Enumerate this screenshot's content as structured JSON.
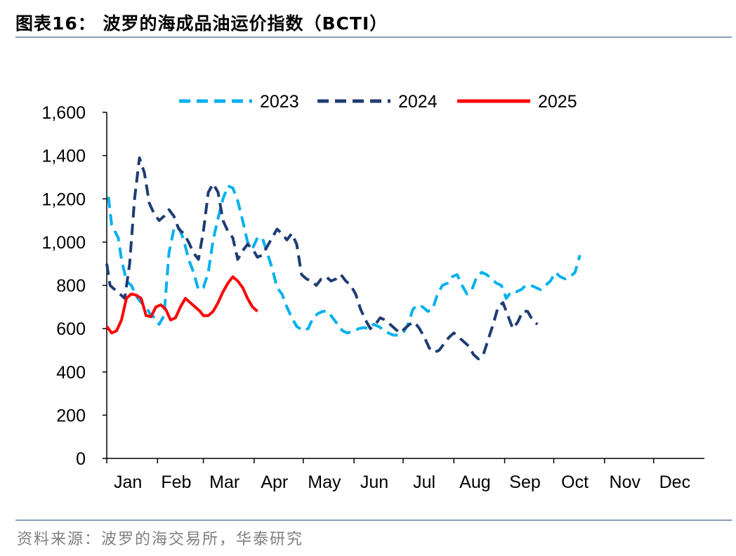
{
  "header": {
    "title": "图表16：  波罗的海成品油运价指数（BCTI）"
  },
  "footer": {
    "source": "资料来源：波罗的海交易所，华泰研究"
  },
  "chart_data": {
    "type": "line",
    "title": "",
    "xlabel": "",
    "ylabel": "",
    "ylim": [
      0,
      1600
    ],
    "yticks": [
      "0",
      "200",
      "400",
      "600",
      "800",
      "1,000",
      "1,200",
      "1,400",
      "1,600"
    ],
    "months": [
      "Jan",
      "Feb",
      "Mar",
      "Apr",
      "May",
      "Jun",
      "Jul",
      "Aug",
      "Sep",
      "Oct",
      "Nov",
      "Dec"
    ],
    "legend_position": "top",
    "grid": false,
    "series": [
      {
        "name": "2023",
        "color": "#00b0f0",
        "style": "dashed",
        "points": [
          [
            "01-02",
            1210
          ],
          [
            "01-04",
            1080
          ],
          [
            "01-06",
            1050
          ],
          [
            "01-08",
            1020
          ],
          [
            "01-10",
            920
          ],
          [
            "01-13",
            820
          ],
          [
            "01-16",
            800
          ],
          [
            "01-19",
            750
          ],
          [
            "01-22",
            720
          ],
          [
            "01-25",
            700
          ],
          [
            "01-28",
            660
          ],
          [
            "01-31",
            650
          ],
          [
            "02-02",
            620
          ],
          [
            "02-05",
            660
          ],
          [
            "02-08",
            950
          ],
          [
            "02-11",
            1060
          ],
          [
            "02-14",
            1070
          ],
          [
            "02-17",
            1010
          ],
          [
            "02-20",
            920
          ],
          [
            "02-23",
            860
          ],
          [
            "02-26",
            780
          ],
          [
            "03-01",
            790
          ],
          [
            "03-04",
            860
          ],
          [
            "03-07",
            1010
          ],
          [
            "03-10",
            1110
          ],
          [
            "03-13",
            1200
          ],
          [
            "03-16",
            1260
          ],
          [
            "03-19",
            1250
          ],
          [
            "03-22",
            1190
          ],
          [
            "03-25",
            1100
          ],
          [
            "03-28",
            1000
          ],
          [
            "03-31",
            970
          ],
          [
            "04-03",
            1020
          ],
          [
            "04-06",
            1020
          ],
          [
            "04-09",
            950
          ],
          [
            "04-12",
            880
          ],
          [
            "04-15",
            790
          ],
          [
            "04-18",
            760
          ],
          [
            "04-21",
            700
          ],
          [
            "04-24",
            650
          ],
          [
            "04-27",
            610
          ],
          [
            "05-01",
            590
          ],
          [
            "05-04",
            600
          ],
          [
            "05-07",
            650
          ],
          [
            "05-10",
            670
          ],
          [
            "05-13",
            680
          ],
          [
            "05-16",
            680
          ],
          [
            "05-19",
            650
          ],
          [
            "05-22",
            620
          ],
          [
            "05-25",
            590
          ],
          [
            "05-28",
            580
          ],
          [
            "06-01",
            590
          ],
          [
            "06-04",
            600
          ],
          [
            "06-07",
            605
          ],
          [
            "06-10",
            600
          ],
          [
            "06-13",
            620
          ],
          [
            "06-16",
            610
          ],
          [
            "06-19",
            595
          ],
          [
            "06-22",
            580
          ],
          [
            "06-25",
            570
          ],
          [
            "06-28",
            570
          ],
          [
            "07-01",
            580
          ],
          [
            "07-04",
            620
          ],
          [
            "07-07",
            690
          ],
          [
            "07-10",
            710
          ],
          [
            "07-13",
            700
          ],
          [
            "07-16",
            680
          ],
          [
            "07-19",
            690
          ],
          [
            "07-22",
            760
          ],
          [
            "07-25",
            800
          ],
          [
            "07-28",
            810
          ],
          [
            "07-31",
            840
          ],
          [
            "08-03",
            850
          ],
          [
            "08-06",
            800
          ],
          [
            "08-09",
            760
          ],
          [
            "08-12",
            780
          ],
          [
            "08-15",
            840
          ],
          [
            "08-18",
            860
          ],
          [
            "08-21",
            850
          ],
          [
            "08-24",
            830
          ],
          [
            "08-27",
            810
          ],
          [
            "08-30",
            800
          ],
          [
            "09-02",
            740
          ],
          [
            "09-05",
            770
          ],
          [
            "09-08",
            770
          ],
          [
            "09-11",
            780
          ],
          [
            "09-14",
            800
          ],
          [
            "09-17",
            800
          ],
          [
            "09-20",
            790
          ],
          [
            "09-23",
            780
          ],
          [
            "09-26",
            800
          ],
          [
            "09-29",
            820
          ],
          [
            "10-02",
            860
          ],
          [
            "10-05",
            840
          ],
          [
            "10-08",
            830
          ],
          [
            "10-11",
            840
          ],
          [
            "10-14",
            860
          ],
          [
            "10-17",
            940
          ]
        ]
      },
      {
        "name": "2024",
        "color": "#1f3d73",
        "style": "dashed",
        "points": [
          [
            "01-01",
            900
          ],
          [
            "01-03",
            800
          ],
          [
            "01-06",
            780
          ],
          [
            "01-09",
            760
          ],
          [
            "01-12",
            740
          ],
          [
            "01-15",
            900
          ],
          [
            "01-18",
            1200
          ],
          [
            "01-21",
            1390
          ],
          [
            "01-24",
            1320
          ],
          [
            "01-27",
            1180
          ],
          [
            "01-30",
            1130
          ],
          [
            "02-02",
            1100
          ],
          [
            "02-05",
            1120
          ],
          [
            "02-08",
            1150
          ],
          [
            "02-11",
            1120
          ],
          [
            "02-14",
            1060
          ],
          [
            "02-17",
            1040
          ],
          [
            "02-20",
            1000
          ],
          [
            "02-23",
            950
          ],
          [
            "02-26",
            920
          ],
          [
            "03-01",
            1050
          ],
          [
            "03-04",
            1230
          ],
          [
            "03-07",
            1270
          ],
          [
            "03-10",
            1230
          ],
          [
            "03-13",
            1100
          ],
          [
            "03-16",
            1050
          ],
          [
            "03-19",
            1020
          ],
          [
            "03-22",
            920
          ],
          [
            "03-25",
            960
          ],
          [
            "03-28",
            990
          ],
          [
            "03-31",
            970
          ],
          [
            "04-03",
            930
          ],
          [
            "04-06",
            940
          ],
          [
            "04-09",
            980
          ],
          [
            "04-12",
            1020
          ],
          [
            "04-15",
            1060
          ],
          [
            "04-18",
            1040
          ],
          [
            "04-21",
            1010
          ],
          [
            "04-24",
            1040
          ],
          [
            "04-27",
            990
          ],
          [
            "04-30",
            850
          ],
          [
            "05-03",
            830
          ],
          [
            "05-06",
            820
          ],
          [
            "05-09",
            800
          ],
          [
            "05-12",
            830
          ],
          [
            "05-15",
            840
          ],
          [
            "05-18",
            820
          ],
          [
            "05-21",
            830
          ],
          [
            "05-24",
            850
          ],
          [
            "05-27",
            820
          ],
          [
            "05-30",
            800
          ],
          [
            "06-02",
            760
          ],
          [
            "06-05",
            690
          ],
          [
            "06-08",
            640
          ],
          [
            "06-11",
            600
          ],
          [
            "06-14",
            620
          ],
          [
            "06-17",
            650
          ],
          [
            "06-20",
            640
          ],
          [
            "06-23",
            620
          ],
          [
            "06-26",
            600
          ],
          [
            "06-29",
            580
          ],
          [
            "07-02",
            600
          ],
          [
            "07-05",
            620
          ],
          [
            "07-08",
            630
          ],
          [
            "07-11",
            600
          ],
          [
            "07-14",
            560
          ],
          [
            "07-17",
            510
          ],
          [
            "07-20",
            490
          ],
          [
            "07-23",
            500
          ],
          [
            "07-26",
            530
          ],
          [
            "07-29",
            560
          ],
          [
            "08-01",
            580
          ],
          [
            "08-04",
            560
          ],
          [
            "08-07",
            540
          ],
          [
            "08-10",
            520
          ],
          [
            "08-13",
            480
          ],
          [
            "08-16",
            460
          ],
          [
            "08-19",
            480
          ],
          [
            "08-22",
            550
          ],
          [
            "08-25",
            620
          ],
          [
            "08-28",
            700
          ],
          [
            "08-31",
            720
          ],
          [
            "09-03",
            660
          ],
          [
            "09-06",
            600
          ],
          [
            "09-09",
            630
          ],
          [
            "09-12",
            680
          ],
          [
            "09-15",
            680
          ],
          [
            "09-18",
            640
          ],
          [
            "09-21",
            620
          ]
        ]
      },
      {
        "name": "2025",
        "color": "#ff0000",
        "style": "solid",
        "points": [
          [
            "01-01",
            610
          ],
          [
            "01-04",
            580
          ],
          [
            "01-07",
            590
          ],
          [
            "01-10",
            640
          ],
          [
            "01-13",
            740
          ],
          [
            "01-16",
            760
          ],
          [
            "01-19",
            755
          ],
          [
            "01-22",
            740
          ],
          [
            "01-25",
            660
          ],
          [
            "01-28",
            655
          ],
          [
            "01-31",
            700
          ],
          [
            "02-03",
            710
          ],
          [
            "02-06",
            690
          ],
          [
            "02-09",
            640
          ],
          [
            "02-12",
            650
          ],
          [
            "02-15",
            700
          ],
          [
            "02-18",
            740
          ],
          [
            "02-21",
            720
          ],
          [
            "02-24",
            700
          ],
          [
            "02-27",
            680
          ],
          [
            "03-01",
            660
          ],
          [
            "03-04",
            660
          ],
          [
            "03-07",
            680
          ],
          [
            "03-10",
            720
          ],
          [
            "03-13",
            770
          ],
          [
            "03-16",
            810
          ],
          [
            "03-19",
            840
          ],
          [
            "03-22",
            820
          ],
          [
            "03-25",
            790
          ],
          [
            "03-28",
            740
          ],
          [
            "03-31",
            700
          ],
          [
            "04-03",
            680
          ]
        ]
      }
    ]
  }
}
